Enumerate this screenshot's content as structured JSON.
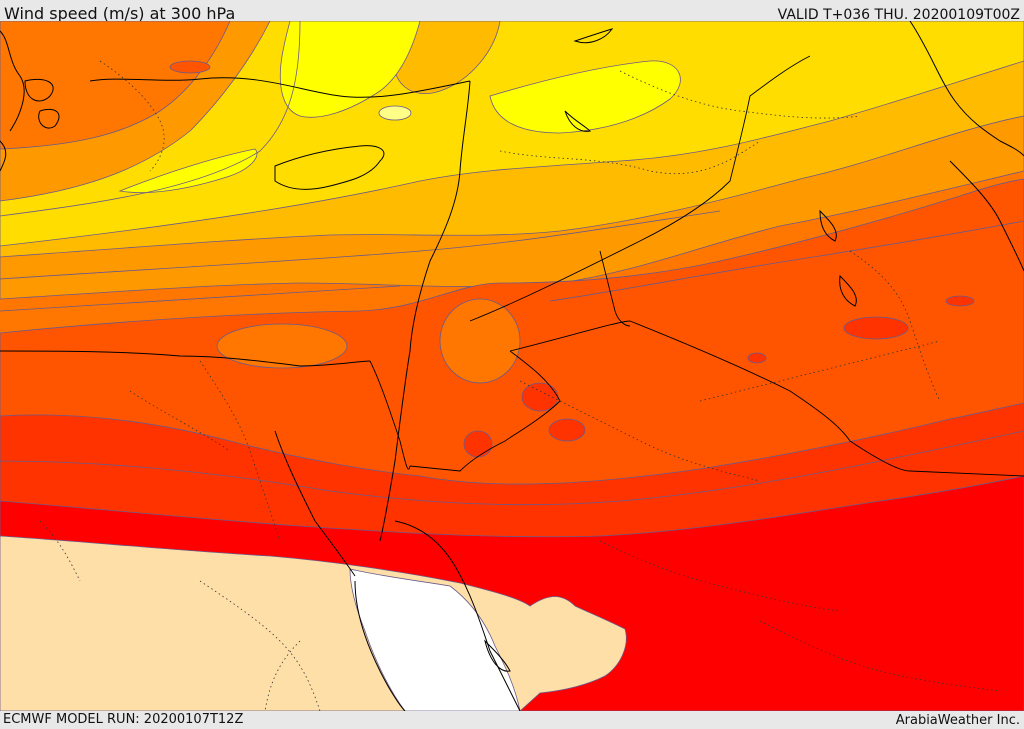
{
  "header": {
    "title": "Wind speed (m/s) at 300 hPa",
    "valid": "VALID T+036 THU. 20200109T00Z"
  },
  "footer": {
    "model_run": "ECMWF MODEL RUN: 20200107T12Z",
    "credit": "ArabiaWeather Inc."
  },
  "palette": {
    "pale_yellow": "#ffff88",
    "yellow": "#ffff00",
    "gold": "#ffdd00",
    "amber": "#ffbb00",
    "light_orange": "#ff9900",
    "orange": "#ff7700",
    "red_orange": "#ff5500",
    "orange_red": "#ff3300",
    "red": "#ff0000",
    "peach": "#ffdfa8",
    "white": "#ffffff",
    "contour": "#6a5a8a",
    "border": "#000000"
  }
}
